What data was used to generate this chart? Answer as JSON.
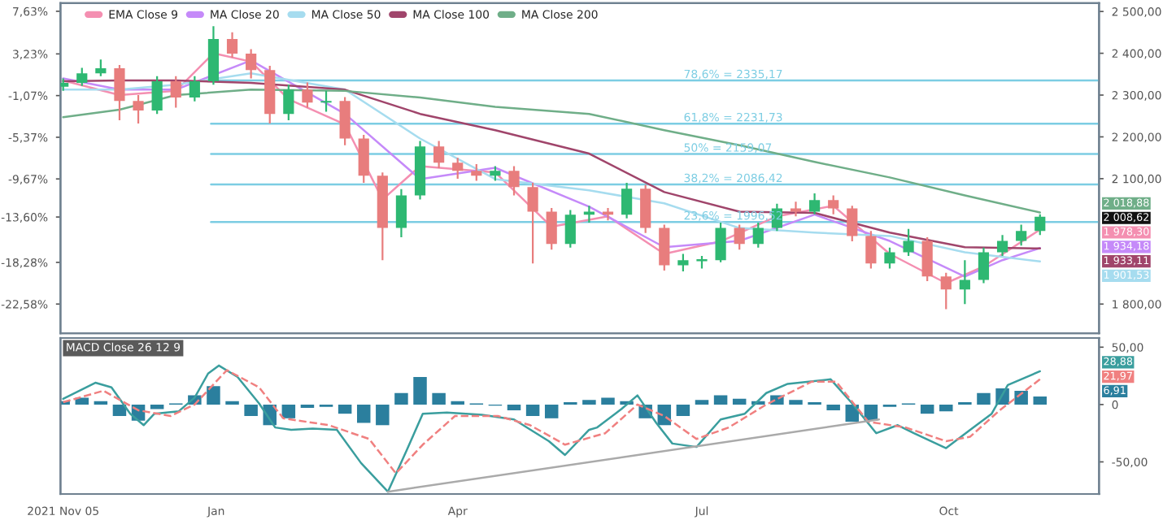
{
  "chart_data": [
    {
      "type": "candlestick",
      "tick_labels": "y",
      "legend": "top left",
      "xlim": [
        "2021-11-04",
        "2022-11-26"
      ],
      "ylim": [
        -25.6,
        8.47
      ],
      "yticks": [
        {
          "value": 7.63,
          "label": "7,63%"
        },
        {
          "value": 3.23,
          "label": "3,23%"
        },
        {
          "value": -1.07,
          "label": "-1,07%"
        },
        {
          "value": -5.37,
          "label": "-5,37%"
        },
        {
          "value": -9.67,
          "label": "-9,67%"
        },
        {
          "value": -13.6,
          "label": "-13,60%"
        },
        {
          "value": -18.28,
          "label": "-18,28%"
        },
        {
          "value": -22.58,
          "label": "-22,58%"
        }
      ],
      "y2lim": [
        1730,
        2520
      ],
      "y2ticks": [
        {
          "value": 1800,
          "label": "1 800,00"
        },
        {
          "value": 2100,
          "label": "2 100,00"
        },
        {
          "value": 2200,
          "label": "2 200,00"
        },
        {
          "value": 2300,
          "label": "2 300,00"
        },
        {
          "value": 2400,
          "label": "2 400,00"
        },
        {
          "value": 2500,
          "label": "2 500,00"
        }
      ],
      "series": [
        {
          "axis": "y2",
          "x": [
            "2021-11-05",
            "2021-11-12",
            "2021-11-19",
            "2021-11-26",
            "2021-12-03",
            "2021-12-10",
            "2021-12-17",
            "2021-12-24",
            "2021-12-31",
            "2022-01-07",
            "2022-01-14",
            "2022-01-21",
            "2022-01-28",
            "2022-02-04",
            "2022-02-11",
            "2022-02-18",
            "2022-02-25",
            "2022-03-04",
            "2022-03-11",
            "2022-03-18",
            "2022-03-25",
            "2022-04-01",
            "2022-04-08",
            "2022-04-15",
            "2022-04-22",
            "2022-04-29",
            "2022-05-06",
            "2022-05-13",
            "2022-05-20",
            "2022-05-27",
            "2022-06-03",
            "2022-06-10",
            "2022-06-17",
            "2022-06-24",
            "2022-07-01",
            "2022-07-08",
            "2022-07-15",
            "2022-07-22",
            "2022-07-29",
            "2022-08-05",
            "2022-08-12",
            "2022-08-19",
            "2022-08-26",
            "2022-09-02",
            "2022-09-09",
            "2022-09-16",
            "2022-09-23",
            "2022-09-30",
            "2022-10-07",
            "2022-10-14",
            "2022-10-21",
            "2022-10-28",
            "2022-11-04"
          ],
          "ohlc": [
            [
              2320,
              2340,
              2310,
              2329
            ],
            [
              2329,
              2365,
              2322,
              2352
            ],
            [
              2352,
              2385,
              2345,
              2364
            ],
            [
              2364,
              2372,
              2240,
              2286
            ],
            [
              2286,
              2300,
              2232,
              2263
            ],
            [
              2263,
              2345,
              2255,
              2333
            ],
            [
              2333,
              2345,
              2270,
              2294
            ],
            [
              2294,
              2345,
              2285,
              2333
            ],
            [
              2333,
              2465,
              2325,
              2434
            ],
            [
              2434,
              2450,
              2390,
              2399
            ],
            [
              2399,
              2410,
              2340,
              2360
            ],
            [
              2360,
              2370,
              2232,
              2255
            ],
            [
              2255,
              2325,
              2240,
              2313
            ],
            [
              2313,
              2330,
              2270,
              2282
            ],
            [
              2282,
              2310,
              2260,
              2286
            ],
            [
              2286,
              2295,
              2180,
              2196
            ],
            [
              2196,
              2205,
              2090,
              2107
            ],
            [
              2107,
              2115,
              1905,
              1982
            ],
            [
              1982,
              2075,
              1960,
              2060
            ],
            [
              2060,
              2190,
              2050,
              2177
            ],
            [
              2177,
              2190,
              2125,
              2138
            ],
            [
              2138,
              2150,
              2100,
              2119
            ],
            [
              2119,
              2135,
              2095,
              2107
            ],
            [
              2107,
              2130,
              2095,
              2119
            ],
            [
              2119,
              2130,
              2060,
              2080
            ],
            [
              2080,
              2090,
              1897,
              2021
            ],
            [
              2021,
              2030,
              1930,
              1944
            ],
            [
              1944,
              2025,
              1935,
              2014
            ],
            [
              2014,
              2035,
              1995,
              2021
            ],
            [
              2021,
              2030,
              2000,
              2014
            ],
            [
              2014,
              2090,
              2005,
              2076
            ],
            [
              2076,
              2085,
              1970,
              1982
            ],
            [
              1982,
              1990,
              1880,
              1893
            ],
            [
              1893,
              1920,
              1878,
              1905
            ],
            [
              1905,
              1915,
              1885,
              1905
            ],
            [
              1905,
              1995,
              1900,
              1982
            ],
            [
              1982,
              1990,
              1930,
              1944
            ],
            [
              1944,
              1995,
              1935,
              1982
            ],
            [
              1982,
              2040,
              1975,
              2029
            ],
            [
              2029,
              2045,
              2010,
              2021
            ],
            [
              2021,
              2065,
              2015,
              2049
            ],
            [
              2049,
              2060,
              2015,
              2029
            ],
            [
              2029,
              2035,
              1950,
              1963
            ],
            [
              1963,
              1975,
              1885,
              1897
            ],
            [
              1897,
              1935,
              1885,
              1924
            ],
            [
              1924,
              1980,
              1915,
              1951
            ],
            [
              1951,
              1960,
              1855,
              1866
            ],
            [
              1866,
              1875,
              1788,
              1835
            ],
            [
              1835,
              1905,
              1800,
              1858
            ],
            [
              1858,
              1935,
              1850,
              1924
            ],
            [
              1924,
              1965,
              1915,
              1951
            ],
            [
              1951,
              1990,
              1940,
              1975
            ],
            [
              1975,
              2015,
              1965,
              2009
            ]
          ],
          "colors": [
            "#2eb872",
            "#2eb872",
            "#2eb872",
            "#e87d7d",
            "#e87d7d",
            "#2eb872",
            "#e87d7d",
            "#2eb872",
            "#2eb872",
            "#e87d7d",
            "#e87d7d",
            "#e87d7d",
            "#2eb872",
            "#e87d7d",
            "#2eb872",
            "#e87d7d",
            "#e87d7d",
            "#e87d7d",
            "#2eb872",
            "#2eb872",
            "#e87d7d",
            "#e87d7d",
            "#e87d7d",
            "#2eb872",
            "#e87d7d",
            "#e87d7d",
            "#e87d7d",
            "#2eb872",
            "#2eb872",
            "#e87d7d",
            "#2eb872",
            "#e87d7d",
            "#e87d7d",
            "#2eb872",
            "#2eb872",
            "#2eb872",
            "#e87d7d",
            "#2eb872",
            "#2eb872",
            "#e87d7d",
            "#2eb872",
            "#e87d7d",
            "#e87d7d",
            "#e87d7d",
            "#2eb872",
            "#2eb872",
            "#e87d7d",
            "#e87d7d",
            "#2eb872",
            "#2eb872",
            "#2eb872",
            "#2eb872",
            "#2eb872"
          ]
        },
        {
          "type": "line",
          "axis": "y2",
          "name": "EMA Close 9",
          "color": "#f48fb1",
          "x": [
            "2021-11-05",
            "2021-11-26",
            "2021-12-17",
            "2021-12-31",
            "2022-01-14",
            "2022-01-28",
            "2022-02-18",
            "2022-03-04",
            "2022-03-18",
            "2022-04-15",
            "2022-05-06",
            "2022-05-27",
            "2022-06-17",
            "2022-07-08",
            "2022-07-29",
            "2022-08-19",
            "2022-09-09",
            "2022-09-30",
            "2022-10-14",
            "2022-11-04"
          ],
          "values": [
            2335,
            2300,
            2310,
            2400,
            2380,
            2290,
            2230,
            2050,
            2130,
            2115,
            1985,
            2010,
            1920,
            1950,
            2010,
            2035,
            1920,
            1850,
            1890,
            1978
          ]
        },
        {
          "type": "line",
          "axis": "y2",
          "name": "MA Close 20",
          "color": "#c58af9",
          "x": [
            "2021-11-05",
            "2021-11-26",
            "2021-12-17",
            "2022-01-14",
            "2022-02-18",
            "2022-03-18",
            "2022-04-15",
            "2022-05-20",
            "2022-06-17",
            "2022-07-15",
            "2022-08-12",
            "2022-09-09",
            "2022-10-07",
            "2022-10-21",
            "2022-11-04"
          ],
          "values": [
            2340,
            2313,
            2313,
            2383,
            2255,
            2099,
            2126,
            2033,
            1936,
            1951,
            2014,
            1951,
            1866,
            1905,
            1934
          ]
        },
        {
          "type": "line",
          "axis": "y2",
          "name": "MA Close 50",
          "color": "#a6dcef",
          "x": [
            "2021-11-05",
            "2021-11-26",
            "2021-12-17",
            "2022-01-14",
            "2022-02-18",
            "2022-03-18",
            "2022-04-15",
            "2022-05-20",
            "2022-06-17",
            "2022-07-15",
            "2022-08-12",
            "2022-09-09",
            "2022-10-07",
            "2022-11-04"
          ],
          "values": [
            2313,
            2313,
            2325,
            2352,
            2313,
            2196,
            2099,
            2072,
            2041,
            1982,
            1971,
            1963,
            1924,
            1902
          ]
        },
        {
          "type": "line",
          "axis": "y2",
          "name": "MA Close 100",
          "color": "#a0456b",
          "x": [
            "2021-11-05",
            "2021-11-26",
            "2021-12-17",
            "2022-01-14",
            "2022-02-18",
            "2022-03-18",
            "2022-04-15",
            "2022-05-20",
            "2022-06-17",
            "2022-07-15",
            "2022-08-12",
            "2022-09-09",
            "2022-10-07",
            "2022-11-04"
          ],
          "values": [
            2333,
            2335,
            2335,
            2329,
            2313,
            2255,
            2216,
            2160,
            2068,
            2021,
            2018,
            1971,
            1936,
            1933
          ]
        },
        {
          "type": "line",
          "axis": "y2",
          "name": "MA Close 200",
          "color": "#6fae88",
          "x": [
            "2021-11-05",
            "2021-11-26",
            "2021-12-17",
            "2022-01-14",
            "2022-02-18",
            "2022-03-18",
            "2022-04-15",
            "2022-05-20",
            "2022-06-17",
            "2022-07-15",
            "2022-08-12",
            "2022-09-09",
            "2022-10-07",
            "2022-11-04"
          ],
          "values": [
            2247,
            2265,
            2300,
            2313,
            2310,
            2294,
            2272,
            2255,
            2216,
            2180,
            2140,
            2103,
            2060,
            2019
          ]
        }
      ],
      "ref_lines": [
        {
          "axis": "y2",
          "value": 2335.17,
          "label": "78,6% = 2335,17",
          "color": "#7ccde3"
        },
        {
          "axis": "y2",
          "value": 2231.73,
          "label": "61,8% = 2231,73",
          "color": "#7ccde3"
        },
        {
          "axis": "y2",
          "value": 2159.07,
          "label": "50% = 2159,07",
          "color": "#7ccde3"
        },
        {
          "axis": "y2",
          "value": 2086.42,
          "label": "38,2% = 2086,42",
          "color": "#7ccde3"
        },
        {
          "axis": "y2",
          "value": 1996.52,
          "label": "23,6% = 1996,52",
          "color": "#7ccde3"
        }
      ],
      "annotations": [
        "2 018,88",
        "2 008,62",
        "1 978,30",
        "1 934,18",
        "1 933,11",
        "1 901,53"
      ]
    },
    {
      "type": "line",
      "title": "MACD Close 26 12 9",
      "xlim": [
        "2021-11-04",
        "2022-11-26"
      ],
      "xticks": [
        {
          "value": "2021-11-05",
          "label": "2021 Nov 05"
        },
        {
          "value": "2022-01-01",
          "label": "Jan"
        },
        {
          "value": "2022-04-01",
          "label": "Apr"
        },
        {
          "value": "2022-07-01",
          "label": "Jul"
        },
        {
          "value": "2022-10-01",
          "label": "Oct"
        }
      ],
      "y2lim": [
        -78,
        58
      ],
      "y2ticks": [
        {
          "value": 50,
          "label": "50,00"
        },
        0,
        {
          "value": -50,
          "label": "-50,00"
        }
      ],
      "series": [
        {
          "type": "bar",
          "axis": "y2",
          "color": "#2b7f9e",
          "x": [
            "2021-11-05",
            "2021-11-12",
            "2021-11-19",
            "2021-11-26",
            "2021-12-03",
            "2021-12-10",
            "2021-12-17",
            "2021-12-24",
            "2021-12-31",
            "2022-01-07",
            "2022-01-14",
            "2022-01-21",
            "2022-01-28",
            "2022-02-04",
            "2022-02-11",
            "2022-02-18",
            "2022-02-25",
            "2022-03-04",
            "2022-03-11",
            "2022-03-18",
            "2022-03-25",
            "2022-04-01",
            "2022-04-08",
            "2022-04-15",
            "2022-04-22",
            "2022-04-29",
            "2022-05-06",
            "2022-05-13",
            "2022-05-20",
            "2022-05-27",
            "2022-06-03",
            "2022-06-10",
            "2022-06-17",
            "2022-06-24",
            "2022-07-01",
            "2022-07-08",
            "2022-07-15",
            "2022-07-22",
            "2022-07-29",
            "2022-08-05",
            "2022-08-12",
            "2022-08-19",
            "2022-08-26",
            "2022-09-02",
            "2022-09-09",
            "2022-09-16",
            "2022-09-23",
            "2022-09-30",
            "2022-10-07",
            "2022-10-14",
            "2022-10-21",
            "2022-10-28",
            "2022-11-04"
          ],
          "values": [
            3,
            6,
            3,
            -10,
            -14,
            -4,
            1,
            8,
            16,
            3,
            -10,
            -18,
            -12,
            -3,
            -2,
            -8,
            -16,
            -18,
            10,
            24,
            10,
            3,
            1,
            -1,
            -5,
            -10,
            -12,
            2,
            4,
            6,
            3,
            -12,
            -18,
            -10,
            4,
            8,
            5,
            3,
            8,
            4,
            2,
            -5,
            -15,
            -14,
            -2,
            1,
            -8,
            -6,
            2,
            10,
            14,
            12,
            7
          ]
        },
        {
          "axis": "y2",
          "color": "#3a9e9e",
          "line_style": "solid",
          "x": [
            "2021-11-05",
            "2021-11-17",
            "2021-11-23",
            "2021-11-30",
            "2021-12-05",
            "2021-12-09",
            "2021-12-18",
            "2021-12-24",
            "2021-12-29",
            "2022-01-02",
            "2022-01-09",
            "2022-01-17",
            "2022-01-23",
            "2022-01-29",
            "2022-02-06",
            "2022-02-15",
            "2022-02-24",
            "2022-03-06",
            "2022-03-13",
            "2022-03-19",
            "2022-03-28",
            "2022-04-10",
            "2022-04-22",
            "2022-05-05",
            "2022-05-11",
            "2022-05-20",
            "2022-05-23",
            "2022-06-01",
            "2022-06-07",
            "2022-06-14",
            "2022-06-20",
            "2022-06-29",
            "2022-07-08",
            "2022-07-17",
            "2022-07-25",
            "2022-08-02",
            "2022-08-18",
            "2022-08-26",
            "2022-09-04",
            "2022-09-12",
            "2022-09-18",
            "2022-09-30",
            "2022-10-09",
            "2022-10-17",
            "2022-10-23",
            "2022-10-31",
            "2022-11-04"
          ],
          "values": [
            5,
            19,
            15,
            -8,
            -18,
            -8,
            -6,
            6,
            27,
            34,
            24,
            1,
            -20,
            -22,
            -21,
            -22,
            -51,
            -76,
            -40,
            -8,
            -7,
            -9,
            -13,
            -32,
            -44,
            -22,
            -20,
            -4,
            8,
            -16,
            -34,
            -37,
            -13,
            -8,
            10,
            18,
            22,
            1,
            -25,
            -18,
            -25,
            -38,
            -22,
            -8,
            17,
            25,
            29
          ]
        },
        {
          "axis": "y2",
          "color": "#f08080",
          "line_style": "dashed",
          "x": [
            "2021-11-05",
            "2021-11-20",
            "2021-12-03",
            "2021-12-15",
            "2021-12-24",
            "2022-01-05",
            "2022-01-17",
            "2022-01-26",
            "2022-02-12",
            "2022-02-27",
            "2022-03-09",
            "2022-03-19",
            "2022-03-31",
            "2022-04-16",
            "2022-04-28",
            "2022-05-11",
            "2022-05-26",
            "2022-06-07",
            "2022-06-17",
            "2022-06-29",
            "2022-07-11",
            "2022-07-25",
            "2022-08-11",
            "2022-08-20",
            "2022-09-01",
            "2022-09-15",
            "2022-09-30",
            "2022-10-09",
            "2022-10-20",
            "2022-11-04"
          ],
          "values": [
            2,
            12,
            -5,
            -10,
            0,
            30,
            15,
            -12,
            -18,
            -30,
            -60,
            -35,
            -10,
            -10,
            -18,
            -35,
            -25,
            0,
            -10,
            -30,
            -20,
            0,
            20,
            20,
            -15,
            -20,
            -32,
            -28,
            -5,
            22
          ]
        },
        {
          "axis": "y2",
          "color": "#aaaaaa",
          "line_style": "solid",
          "x": [
            "2022-03-06",
            "2022-09-05"
          ],
          "values": [
            -76,
            -13
          ]
        }
      ],
      "annotations": [
        "28,88",
        "21,97",
        "6,91"
      ]
    }
  ]
}
